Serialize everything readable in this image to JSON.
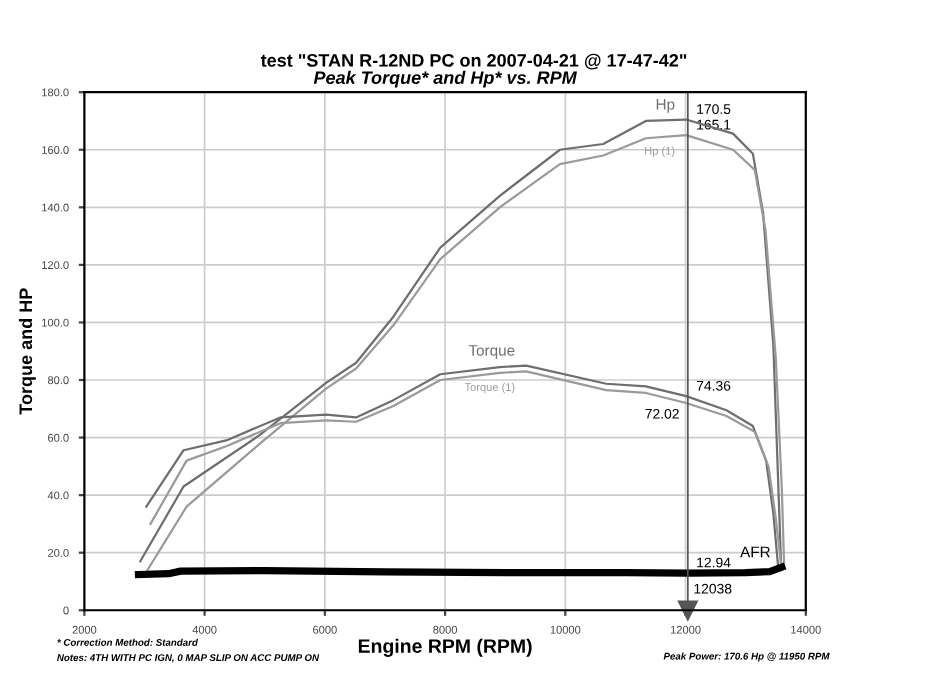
{
  "chart_data": {
    "type": "line",
    "title": "test \"STAN R-12ND PC on 2007-04-21 @ 17-47-42\"",
    "subtitle": "Peak Torque* and Hp* vs. RPM",
    "xlabel": "Engine RPM (RPM)",
    "ylabel": "Torque and HP",
    "xlim": [
      2000,
      14000
    ],
    "xticks": [
      2000,
      4000,
      6000,
      8000,
      10000,
      12000,
      14000
    ],
    "ylim": [
      0,
      180
    ],
    "yticks": [
      0,
      {
        "value": 20,
        "label": "20.0"
      },
      {
        "value": 40,
        "label": "40.0"
      },
      {
        "value": 60,
        "label": "60.0"
      },
      {
        "value": 80,
        "label": "80.0"
      },
      {
        "value": 100,
        "label": "100.0"
      },
      {
        "value": 120,
        "label": "120.0"
      },
      {
        "value": 140,
        "label": "140.0"
      },
      {
        "value": 160,
        "label": "160.0"
      },
      {
        "value": 180,
        "label": "180.0"
      }
    ],
    "ref_lines": [
      {
        "axis": "x",
        "value": 12038,
        "label": "12038",
        "color": "#555555"
      }
    ],
    "grid": true,
    "legend": false,
    "marker": "none",
    "line_style": "solid",
    "series": [
      {
        "name": "Hp",
        "color": "#6e6e6e",
        "x": [
          2930,
          3650,
          4925,
          6020,
          6520,
          7140,
          7920,
          8910,
          9910,
          10630,
          11340,
          12010,
          12790,
          13120,
          13290,
          13460,
          13540,
          13590
        ],
        "values": [
          17,
          43,
          61,
          79,
          86,
          102,
          126,
          144,
          160,
          162,
          170,
          170.5,
          165.6,
          158.6,
          138,
          92,
          45,
          15
        ]
      },
      {
        "name": "Hp (1)",
        "color": "#9a9a9a",
        "x": [
          3050,
          3700,
          4925,
          6020,
          6520,
          7140,
          7920,
          8910,
          9910,
          10630,
          11340,
          12010,
          12790,
          13150,
          13330,
          13500,
          13600,
          13640
        ],
        "values": [
          14,
          36,
          58,
          77,
          84,
          99,
          122,
          140,
          155,
          158,
          164,
          165.1,
          160,
          153,
          132,
          88,
          43,
          15
        ]
      },
      {
        "name": "Torque",
        "color": "#6e6e6e",
        "x": [
          3030,
          3650,
          4360,
          5260,
          6020,
          6520,
          7140,
          7920,
          8910,
          9350,
          10680,
          11340,
          12010,
          12680,
          13120,
          13340,
          13460,
          13540
        ],
        "values": [
          36,
          55.6,
          59,
          67,
          68,
          67,
          73,
          82,
          84.5,
          85,
          78.7,
          77.8,
          74.4,
          69.5,
          64,
          52,
          33.6,
          15
        ]
      },
      {
        "name": "Torque (1)",
        "color": "#9a9a9a",
        "x": [
          3100,
          3700,
          4360,
          5260,
          6020,
          6520,
          7140,
          7920,
          8910,
          9350,
          10680,
          11340,
          12010,
          12680,
          13150,
          13380,
          13500,
          13600
        ],
        "values": [
          30,
          52,
          57,
          65,
          66,
          65.5,
          71,
          80,
          82.5,
          83,
          76.5,
          75.5,
          72,
          67.5,
          62,
          50,
          32,
          14
        ]
      },
      {
        "name": "AFR",
        "color": "#000000",
        "x": [
          2900,
          3400,
          3600,
          5000,
          7000,
          9000,
          11000,
          12038,
          13000,
          13400,
          13600
        ],
        "values": [
          12.4,
          12.7,
          13.6,
          13.8,
          13.3,
          13.1,
          13.1,
          12.9,
          13.1,
          13.4,
          15
        ]
      }
    ],
    "annotations": [
      {
        "text": "170.5",
        "y": 170.5
      },
      {
        "text": "165.1",
        "y": 165.1
      },
      {
        "text": "74.36",
        "y": 74.36
      },
      {
        "text": "72.02",
        "y": 72.02
      },
      {
        "text": "12.94",
        "y": 12.94
      },
      "* Correction Method: Standard",
      "Notes: 4TH WITH PC IGN, 0 MAP SLIP ON ACC PUMP ON",
      "Peak Power: 170.6 Hp @ 11950 RPM"
    ]
  }
}
